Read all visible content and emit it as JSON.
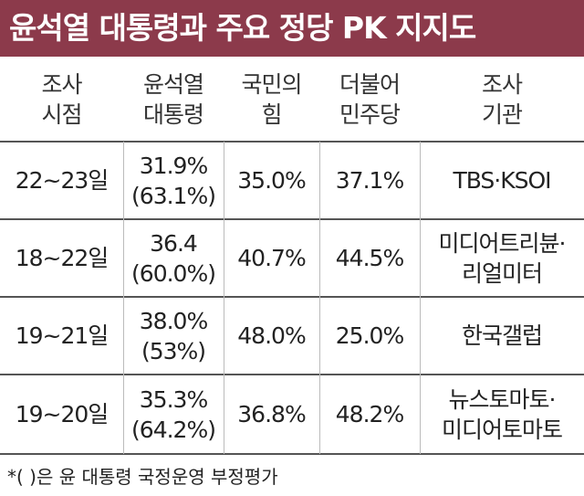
{
  "header": {
    "title": "윤석열 대통령과 주요 정당 PK 지지도"
  },
  "table": {
    "columns": [
      [
        "조사",
        "시점"
      ],
      [
        "윤석열",
        "대통령"
      ],
      [
        "국민의",
        "힘"
      ],
      [
        "더불어",
        "민주당"
      ],
      [
        "조사",
        "기관"
      ]
    ],
    "rows": [
      [
        [
          "22~23일"
        ],
        [
          "31.9%",
          "(63.1%)"
        ],
        [
          "35.0%"
        ],
        [
          "37.1%"
        ],
        [
          "TBS·KSOI"
        ]
      ],
      [
        [
          "18~22일"
        ],
        [
          "36.4",
          "(60.0%)"
        ],
        [
          "40.7%"
        ],
        [
          "44.5%"
        ],
        [
          "미디어트리뷴·",
          "리얼미터"
        ]
      ],
      [
        [
          "19~21일"
        ],
        [
          "38.0%",
          "(53%)"
        ],
        [
          "48.0%"
        ],
        [
          "25.0%"
        ],
        [
          "한국갤럽"
        ]
      ],
      [
        [
          "19~20일"
        ],
        [
          "35.3%",
          "(64.2%)"
        ],
        [
          "36.8%"
        ],
        [
          "48.2%"
        ],
        [
          "뉴스토마토·",
          "미디어토마토"
        ]
      ]
    ]
  },
  "footnote": "*(   )은 윤 대통령 국정운영 부정평가"
}
